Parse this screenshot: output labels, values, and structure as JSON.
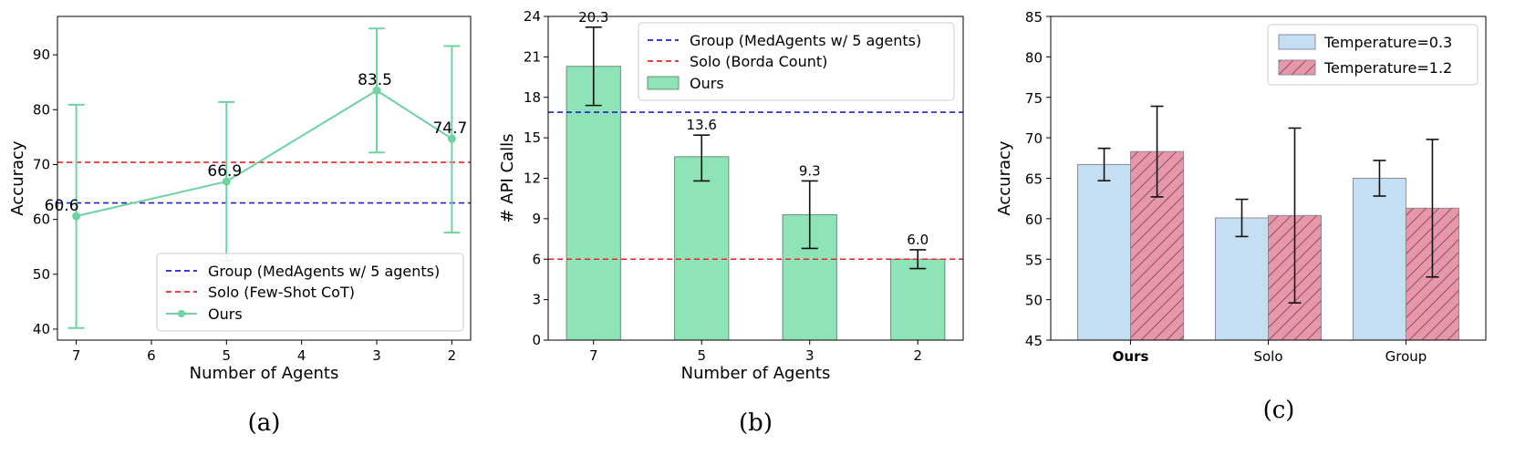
{
  "colors": {
    "ours_green": "#6ed3a0",
    "bar_green": "#8ee4b6",
    "group_blue": "#1f1fd6",
    "solo_red": "#ee2222",
    "temp_blue": "#c5dff2",
    "temp_pink": "#e897ab"
  },
  "chart_data": [
    {
      "caption": "(a)",
      "type": "line",
      "xlabel": "Number of Agents",
      "ylabel": "Accuracy",
      "x": [
        7,
        5,
        3,
        2
      ],
      "x_ticks": [
        "7",
        "6",
        "5",
        "4",
        "3",
        "2"
      ],
      "x_inverted": true,
      "y_ticks": [
        "40",
        "50",
        "60",
        "70",
        "80",
        "90"
      ],
      "ylim": [
        38,
        97
      ],
      "series": [
        {
          "name": "Ours",
          "values": [
            60.6,
            66.9,
            83.5,
            74.7
          ],
          "err_low": [
            40.2,
            52.5,
            72.2,
            57.6
          ],
          "err_high": [
            80.9,
            81.4,
            94.8,
            91.6
          ],
          "labels": [
            "60.6",
            "66.9",
            "83.5",
            "74.7"
          ]
        }
      ],
      "hlines": [
        {
          "name": "Group (MedAgents w/ 5 agents)",
          "value": 63.0,
          "style": "dashed",
          "color": "#1f1fd6"
        },
        {
          "name": "Solo (Few-Shot CoT)",
          "value": 70.4,
          "style": "dashed",
          "color": "#ee2222"
        }
      ],
      "legend": {
        "position": "lower-right",
        "entries": [
          "Group (MedAgents w/ 5 agents)",
          "Solo (Few-Shot CoT)",
          "Ours"
        ]
      },
      "grid": false
    },
    {
      "caption": "(b)",
      "type": "bar",
      "xlabel": "Number of Agents",
      "ylabel": "# API Calls",
      "categories": [
        "7",
        "5",
        "3",
        "2"
      ],
      "y_ticks": [
        "0",
        "3",
        "6",
        "9",
        "12",
        "15",
        "18",
        "21",
        "24"
      ],
      "ylim": [
        0,
        24
      ],
      "series": [
        {
          "name": "Ours",
          "values": [
            20.3,
            13.6,
            9.3,
            6.0
          ],
          "err_low": [
            17.4,
            11.8,
            6.8,
            5.3
          ],
          "err_high": [
            23.2,
            15.2,
            11.8,
            6.7
          ],
          "labels": [
            "20.3",
            "13.6",
            "9.3",
            "6.0"
          ]
        }
      ],
      "hlines": [
        {
          "name": "Group (MedAgents w/ 5 agents)",
          "value": 16.9,
          "style": "dashed",
          "color": "#1f1fd6"
        },
        {
          "name": "Solo (Borda Count)",
          "value": 6.0,
          "style": "dashed",
          "color": "#ee2222"
        }
      ],
      "legend": {
        "position": "upper-right",
        "entries": [
          "Group (MedAgents w/ 5 agents)",
          "Solo (Borda Count)",
          "Ours"
        ]
      },
      "grid": false
    },
    {
      "caption": "(c)",
      "type": "bar",
      "xlabel": "",
      "ylabel": "Accuracy",
      "categories": [
        "Ours",
        "Solo",
        "Group"
      ],
      "bold_category": "Ours",
      "y_ticks": [
        "45",
        "50",
        "55",
        "60",
        "65",
        "70",
        "75",
        "80",
        "85"
      ],
      "ylim": [
        45,
        85
      ],
      "series": [
        {
          "name": "Temperature=0.3",
          "values": [
            66.7,
            60.1,
            65.0
          ],
          "err_low": [
            64.7,
            57.8,
            62.8
          ],
          "err_high": [
            68.7,
            62.4,
            67.2
          ]
        },
        {
          "name": "Temperature=1.2",
          "values": [
            68.3,
            60.4,
            61.3
          ],
          "err_low": [
            62.7,
            49.6,
            52.8
          ],
          "err_high": [
            73.9,
            71.2,
            69.8
          ]
        }
      ],
      "legend": {
        "position": "upper-right",
        "entries": [
          "Temperature=0.3",
          "Temperature=1.2"
        ]
      },
      "grid": false
    }
  ]
}
